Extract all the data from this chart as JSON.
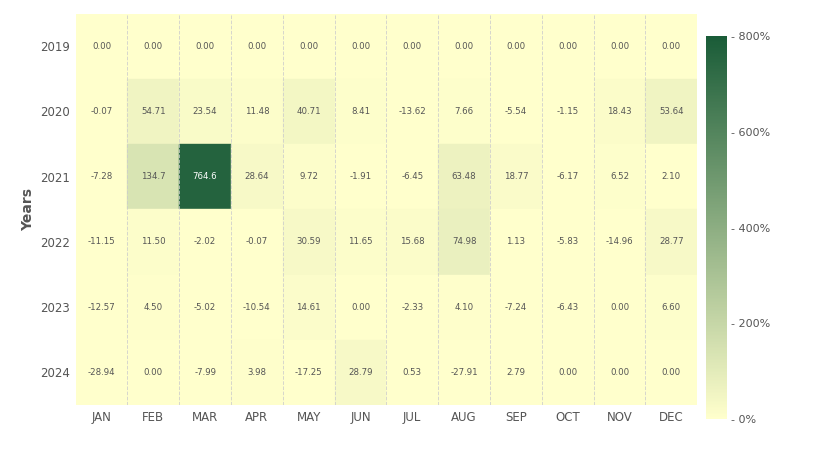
{
  "years": [
    2019,
    2020,
    2021,
    2022,
    2023,
    2024
  ],
  "months": [
    "JAN",
    "FEB",
    "MAR",
    "APR",
    "MAY",
    "JUN",
    "JUL",
    "AUG",
    "SEP",
    "OCT",
    "NOV",
    "DEC"
  ],
  "values": [
    [
      0.0,
      0.0,
      0.0,
      0.0,
      0.0,
      0.0,
      0.0,
      0.0,
      0.0,
      0.0,
      0.0,
      0.0
    ],
    [
      -0.07,
      54.71,
      23.54,
      11.48,
      40.71,
      8.41,
      -13.62,
      7.66,
      -5.54,
      -1.15,
      18.43,
      53.64
    ],
    [
      -7.28,
      134.7,
      764.6,
      28.64,
      9.72,
      -1.91,
      -6.45,
      63.48,
      18.77,
      -6.17,
      6.52,
      2.1
    ],
    [
      -11.15,
      11.5,
      -2.02,
      -0.07,
      30.59,
      11.65,
      15.68,
      74.98,
      1.13,
      -5.83,
      -14.96,
      28.77
    ],
    [
      -12.57,
      4.5,
      -5.02,
      -10.54,
      14.61,
      0.0,
      -2.33,
      4.1,
      -7.24,
      -6.43,
      0.0,
      6.6
    ],
    [
      -28.94,
      0.0,
      -7.99,
      3.98,
      -17.25,
      28.79,
      0.53,
      -27.91,
      2.79,
      0.0,
      0.0,
      0.0
    ]
  ],
  "display_values": [
    [
      "0.00",
      "0.00",
      "0.00",
      "0.00",
      "0.00",
      "0.00",
      "0.00",
      "0.00",
      "0.00",
      "0.00",
      "0.00",
      "0.00"
    ],
    [
      "-0.07",
      "54.71",
      "23.54",
      "11.48",
      "40.71",
      "8.41",
      "-13.62",
      "7.66",
      "-5.54",
      "-1.15",
      "18.43",
      "53.64"
    ],
    [
      "-7.28",
      "134.7",
      "764.6",
      "28.64",
      "9.72",
      "-1.91",
      "-6.45",
      "63.48",
      "18.77",
      "-6.17",
      "6.52",
      "2.10"
    ],
    [
      "-11.15",
      "11.50",
      "-2.02",
      "-0.07",
      "30.59",
      "11.65",
      "15.68",
      "74.98",
      "1.13",
      "-5.83",
      "-14.96",
      "28.77"
    ],
    [
      "-12.57",
      "4.50",
      "-5.02",
      "-10.54",
      "14.61",
      "0.00",
      "-2.33",
      "4.10",
      "-7.24",
      "-6.43",
      "0.00",
      "6.60"
    ],
    [
      "-28.94",
      "0.00",
      "-7.99",
      "3.98",
      "-17.25",
      "28.79",
      "0.53",
      "-27.91",
      "2.79",
      "0.00",
      "0.00",
      "0.00"
    ]
  ],
  "colorbar_ticks": [
    0,
    200,
    400,
    600,
    800
  ],
  "colorbar_labels": [
    "- 0%",
    "- 200%",
    "- 400%",
    "- 600%",
    "- 800%"
  ],
  "vmin": 0,
  "vmax": 800,
  "fig_bg": "#ffffff",
  "heatmap_bg": "#ffffcc",
  "ylabel": "Years",
  "color_low": "#ffffcc",
  "color_high": "#1a5c38",
  "text_dark": "#555555",
  "text_light": "#ffffff"
}
